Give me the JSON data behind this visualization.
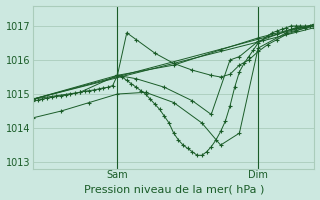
{
  "bg_color": "#cce8e0",
  "grid_color": "#aaccbb",
  "line_color": "#1a5c28",
  "xlabel": "Pression niveau de la mer( hPa )",
  "xlabel_fontsize": 8,
  "tick_color": "#1a5c28",
  "ylim": [
    1012.8,
    1017.6
  ],
  "yticks": [
    1013,
    1014,
    1015,
    1016,
    1017
  ],
  "xlim": [
    0,
    60
  ],
  "sam_x": 18,
  "dim_x": 48,
  "series": [
    {
      "x": [
        0,
        1,
        2,
        3,
        4,
        5,
        6,
        7,
        8,
        9,
        10,
        11,
        12,
        13,
        14,
        15,
        16,
        17,
        18,
        19,
        20,
        21,
        22,
        23,
        24,
        25,
        26,
        27,
        28,
        29,
        30,
        31,
        32,
        33,
        34,
        35,
        36,
        37,
        38,
        39,
        40,
        41,
        42,
        43,
        44,
        45,
        46,
        47,
        48,
        49,
        50,
        51,
        52,
        53,
        54,
        55,
        56,
        57,
        58,
        59,
        60
      ],
      "y": [
        1014.8,
        1014.82,
        1014.85,
        1014.88,
        1014.9,
        1014.93,
        1014.95,
        1014.97,
        1015.0,
        1015.02,
        1015.05,
        1015.08,
        1015.1,
        1015.12,
        1015.15,
        1015.18,
        1015.2,
        1015.25,
        1015.55,
        1015.5,
        1015.4,
        1015.3,
        1015.2,
        1015.1,
        1015.0,
        1014.85,
        1014.7,
        1014.55,
        1014.35,
        1014.15,
        1013.85,
        1013.65,
        1013.5,
        1013.4,
        1013.3,
        1013.2,
        1013.2,
        1013.3,
        1013.45,
        1013.65,
        1013.9,
        1014.2,
        1014.65,
        1015.2,
        1015.65,
        1015.9,
        1016.1,
        1016.3,
        1016.5,
        1016.6,
        1016.7,
        1016.8,
        1016.85,
        1016.9,
        1016.95,
        1017.0,
        1017.0,
        1017.0,
        1017.0,
        1017.0,
        1017.0
      ]
    },
    {
      "x": [
        0,
        60
      ],
      "y": [
        1014.85,
        1017.05
      ]
    },
    {
      "x": [
        0,
        60
      ],
      "y": [
        1014.85,
        1016.95
      ]
    },
    {
      "x": [
        0,
        18,
        30,
        40,
        48,
        55,
        60
      ],
      "y": [
        1014.85,
        1015.55,
        1015.85,
        1016.3,
        1016.65,
        1016.9,
        1017.0
      ]
    },
    {
      "x": [
        0,
        10,
        18,
        22,
        28,
        34,
        38,
        42,
        44,
        48,
        52,
        56,
        60
      ],
      "y": [
        1014.85,
        1015.05,
        1015.55,
        1015.45,
        1015.2,
        1014.8,
        1014.4,
        1016.0,
        1016.1,
        1016.55,
        1016.75,
        1016.95,
        1017.0
      ]
    },
    {
      "x": [
        0,
        6,
        12,
        18,
        24,
        30,
        36,
        40,
        44,
        48,
        54,
        60
      ],
      "y": [
        1014.3,
        1014.5,
        1014.75,
        1015.0,
        1015.05,
        1014.75,
        1014.15,
        1013.5,
        1013.85,
        1016.35,
        1016.8,
        1017.0
      ]
    },
    {
      "x": [
        18,
        20,
        22,
        26,
        30,
        34,
        38,
        40,
        42,
        44,
        46,
        48,
        50,
        52,
        54,
        56,
        58,
        60
      ],
      "y": [
        1015.55,
        1016.8,
        1016.6,
        1016.2,
        1015.9,
        1015.7,
        1015.55,
        1015.5,
        1015.58,
        1015.85,
        1016.0,
        1016.25,
        1016.45,
        1016.6,
        1016.75,
        1016.85,
        1016.95,
        1017.05
      ]
    }
  ]
}
